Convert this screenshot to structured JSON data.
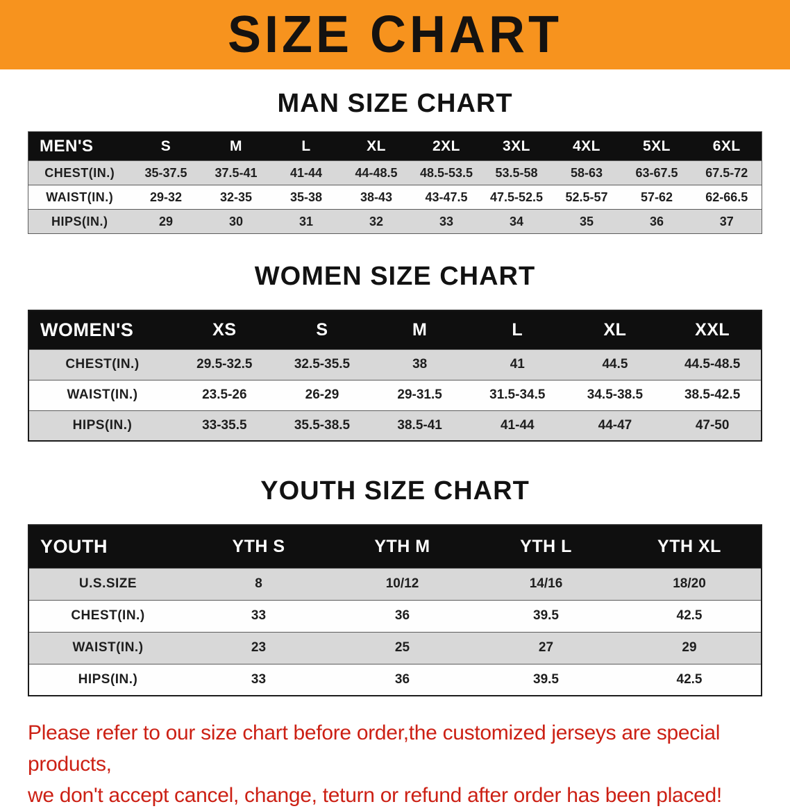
{
  "banner": {
    "title": "SIZE CHART",
    "bg_color": "#f7931e"
  },
  "sections": [
    {
      "id": "men",
      "heading": "MAN SIZE CHART",
      "table": {
        "header": [
          "MEN'S",
          "S",
          "M",
          "L",
          "XL",
          "2XL",
          "3XL",
          "4XL",
          "5XL",
          "6XL"
        ],
        "rows": [
          [
            "CHEST(IN.)",
            "35-37.5",
            "37.5-41",
            "41-44",
            "44-48.5",
            "48.5-53.5",
            "53.5-58",
            "58-63",
            "63-67.5",
            "67.5-72"
          ],
          [
            "WAIST(IN.)",
            "29-32",
            "32-35",
            "35-38",
            "38-43",
            "43-47.5",
            "47.5-52.5",
            "52.5-57",
            "57-62",
            "62-66.5"
          ],
          [
            "HIPS(IN.)",
            "29",
            "30",
            "31",
            "32",
            "33",
            "34",
            "35",
            "36",
            "37"
          ]
        ]
      }
    },
    {
      "id": "women",
      "heading": "WOMEN SIZE CHART",
      "table": {
        "header": [
          "WOMEN'S",
          "XS",
          "S",
          "M",
          "L",
          "XL",
          "XXL"
        ],
        "rows": [
          [
            "CHEST(IN.)",
            "29.5-32.5",
            "32.5-35.5",
            "38",
            "41",
            "44.5",
            "44.5-48.5"
          ],
          [
            "WAIST(IN.)",
            "23.5-26",
            "26-29",
            "29-31.5",
            "31.5-34.5",
            "34.5-38.5",
            "38.5-42.5"
          ],
          [
            "HIPS(IN.)",
            "33-35.5",
            "35.5-38.5",
            "38.5-41",
            "41-44",
            "44-47",
            "47-50"
          ]
        ]
      }
    },
    {
      "id": "youth",
      "heading": "YOUTH SIZE CHART",
      "table": {
        "header": [
          "YOUTH",
          "YTH S",
          "YTH M",
          "YTH L",
          "YTH XL"
        ],
        "rows": [
          [
            "U.S.SIZE",
            "8",
            "10/12",
            "14/16",
            "18/20"
          ],
          [
            "CHEST(IN.)",
            "33",
            "36",
            "39.5",
            "42.5"
          ],
          [
            "WAIST(IN.)",
            "23",
            "25",
            "27",
            "29"
          ],
          [
            "HIPS(IN.)",
            "33",
            "36",
            "39.5",
            "42.5"
          ]
        ]
      }
    }
  ],
  "disclaimer": {
    "lines": [
      "Please refer to our size chart before order,the customized jerseys are special products,",
      "we don't accept cancel, change, teturn or refund after order has been placed!"
    ],
    "color": "#cc2014"
  }
}
